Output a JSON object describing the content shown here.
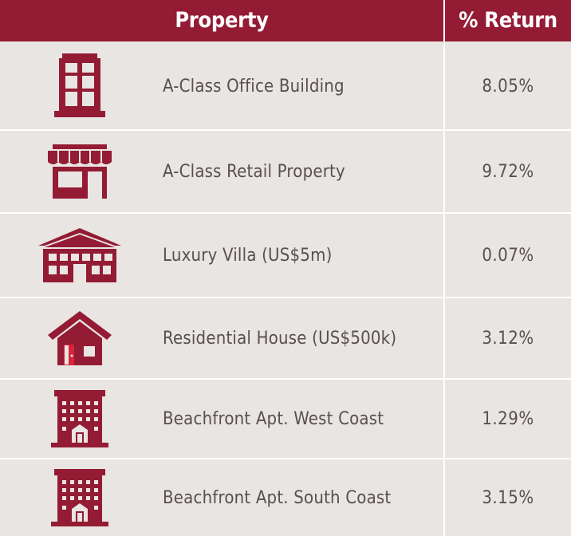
{
  "header": {
    "property": "Property",
    "return": "% Return"
  },
  "accent_color": "#941b34",
  "rows": [
    {
      "icon": "office-building-icon",
      "label": "A-Class Office Building",
      "value": "8.05%"
    },
    {
      "icon": "retail-store-icon",
      "label": "A-Class Retail Property",
      "value": "9.72%"
    },
    {
      "icon": "villa-icon",
      "label": "Luxury Villa (US$5m)",
      "value": "0.07%"
    },
    {
      "icon": "house-icon",
      "label": "Residential House (US$500k)",
      "value": "3.12%"
    },
    {
      "icon": "apartment-building-icon",
      "label": "Beachfront Apt. West Coast",
      "value": "1.29%"
    },
    {
      "icon": "apartment-building-icon",
      "label": "Beachfront Apt. South Coast",
      "value": "3.15%"
    }
  ]
}
